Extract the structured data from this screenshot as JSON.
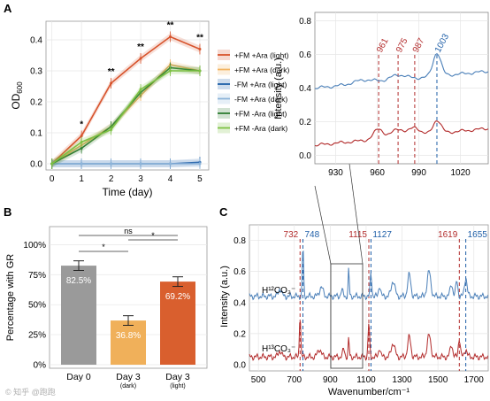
{
  "panels": {
    "a": "A",
    "b": "B",
    "c": "C"
  },
  "colors": {
    "fm_light": "#d7532c",
    "fm_dark": "#f2b462",
    "nofm_light": "#1f5fa8",
    "nofm_dark": "#8db4d9",
    "green_light": "#2e7d32",
    "green_dark": "#7dc142",
    "h12": "#4a7fb8",
    "h13": "#b22b2b",
    "bar_day0": "#9a9a9a",
    "bar_dark": "#f0b05a",
    "bar_light": "#d95f2e"
  },
  "chart_data": [
    {
      "id": "growth",
      "type": "line",
      "xlabel": "Time (day)",
      "ylabel": "OD600",
      "xlim": [
        -0.2,
        5.3
      ],
      "ylim": [
        -0.02,
        0.46
      ],
      "xticks": [
        "0",
        "1",
        "2",
        "3",
        "4",
        "5"
      ],
      "yticks": [
        "0.0",
        "0.1",
        "0.2",
        "0.3",
        "0.4"
      ],
      "x": [
        0,
        1,
        2,
        3,
        4,
        5
      ],
      "series": [
        {
          "name": "+FM +Ara (light)",
          "color": "#d7532c",
          "values": [
            0.0,
            0.09,
            0.26,
            0.34,
            0.41,
            0.37
          ]
        },
        {
          "name": "+FM +Ara (dark)",
          "color": "#f2b462",
          "values": [
            0.0,
            0.06,
            0.12,
            0.22,
            0.32,
            0.3
          ]
        },
        {
          "name": "-FM +Ara (light)",
          "color": "#1f5fa8",
          "values": [
            0.0,
            0.0,
            0.0,
            0.0,
            0.0,
            0.005
          ]
        },
        {
          "name": "-FM +Ara (dark)",
          "color": "#8db4d9",
          "values": [
            0.0,
            0.0,
            0.0,
            0.0,
            0.0,
            0.0
          ]
        },
        {
          "name": "+FM -Ara (light)",
          "color": "#2e7d32",
          "values": [
            0.0,
            0.05,
            0.12,
            0.23,
            0.31,
            0.3
          ]
        },
        {
          "name": "+FM -Ara (dark)",
          "color": "#7dc142",
          "values": [
            0.0,
            0.07,
            0.11,
            0.24,
            0.3,
            0.3
          ]
        }
      ],
      "annotations": [
        {
          "x": 1,
          "text": "*"
        },
        {
          "x": 2,
          "text": "**"
        },
        {
          "x": 3,
          "text": "**"
        },
        {
          "x": 4,
          "text": "**"
        },
        {
          "x": 5,
          "text": "**"
        }
      ]
    },
    {
      "id": "percentage",
      "type": "bar",
      "ylabel": "Percentage with GR",
      "ylim": [
        0,
        1.15
      ],
      "yticks": [
        "0%",
        "25%",
        "50%",
        "75%",
        "100%"
      ],
      "categories": [
        "Day 0",
        "Day 3",
        "Day 3"
      ],
      "sublabels": [
        "",
        "(dark)",
        "(light)"
      ],
      "values": [
        0.825,
        0.368,
        0.692
      ],
      "value_labels": [
        "82.5%",
        "36.8%",
        "69.2%"
      ],
      "significance": [
        "ns",
        "*",
        "*"
      ]
    },
    {
      "id": "raman_zoom",
      "type": "line",
      "ylabel": "Intensity (a.u.)",
      "xlim": [
        915,
        1040
      ],
      "ylim": [
        -0.05,
        0.85
      ],
      "xticks": [
        "930",
        "960",
        "990",
        "1020"
      ],
      "yticks": [
        "0.0",
        "0.2",
        "0.4",
        "0.6",
        "0.8"
      ],
      "markers": [
        {
          "x": 961,
          "label": "961",
          "color": "#b22b2b"
        },
        {
          "x": 975,
          "label": "975",
          "color": "#b22b2b"
        },
        {
          "x": 987,
          "label": "987",
          "color": "#b22b2b"
        },
        {
          "x": 1003,
          "label": "1003",
          "color": "#1f5fa8"
        }
      ]
    },
    {
      "id": "raman_full",
      "type": "line",
      "xlabel": "Wavenumber/cm⁻¹",
      "ylabel": "Intensity (a.u.)",
      "xlim": [
        450,
        1780
      ],
      "ylim": [
        -0.04,
        0.9
      ],
      "xticks": [
        "500",
        "700",
        "900",
        "1100",
        "1300",
        "1500",
        "1700"
      ],
      "yticks": [
        "0.0",
        "0.2",
        "0.4",
        "0.6",
        "0.8"
      ],
      "series_labels": [
        "H¹²CO₃⁻",
        "H¹³CO₃⁻"
      ],
      "markers": [
        {
          "x": 732,
          "label": "732",
          "color": "#b22b2b"
        },
        {
          "x": 748,
          "label": "748",
          "color": "#1f5fa8"
        },
        {
          "x": 1115,
          "label": "1115",
          "color": "#b22b2b"
        },
        {
          "x": 1127,
          "label": "1127",
          "color": "#1f5fa8"
        },
        {
          "x": 1619,
          "label": "1619",
          "color": "#b22b2b"
        },
        {
          "x": 1655,
          "label": "1655",
          "color": "#1f5fa8"
        }
      ]
    }
  ],
  "watermark": "© 知乎 @跑跑"
}
